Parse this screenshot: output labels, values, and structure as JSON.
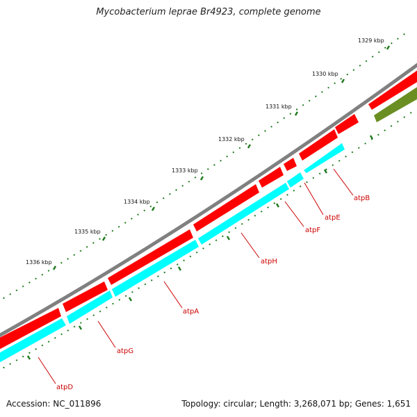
{
  "title": "Mycobacterium leprae Br4923, complete genome",
  "accession": "Accession: NC_011896",
  "summary": "Topology: circular; Length: 3,268,071 bp; Genes: 1,651",
  "colors": {
    "backbone": "#808080",
    "feature_cds": "#ff0000",
    "gene": "#00ffff",
    "other_feature": "#6b8e23",
    "ticks": "#1f7a1f",
    "label_line": "#cc0000"
  },
  "ticks": [
    {
      "label": "1329 kbp"
    },
    {
      "label": "1330 kbp"
    },
    {
      "label": "1331 kbp"
    },
    {
      "label": "1332 kbp"
    },
    {
      "label": "1333 kbp"
    },
    {
      "label": "1334 kbp"
    },
    {
      "label": "1335 kbp"
    },
    {
      "label": "1336 kbp"
    }
  ],
  "genes": [
    {
      "name": "atpB"
    },
    {
      "name": "atpE"
    },
    {
      "name": "atpF"
    },
    {
      "name": "atpH"
    },
    {
      "name": "atpA"
    },
    {
      "name": "atpG"
    },
    {
      "name": "atpD"
    }
  ]
}
